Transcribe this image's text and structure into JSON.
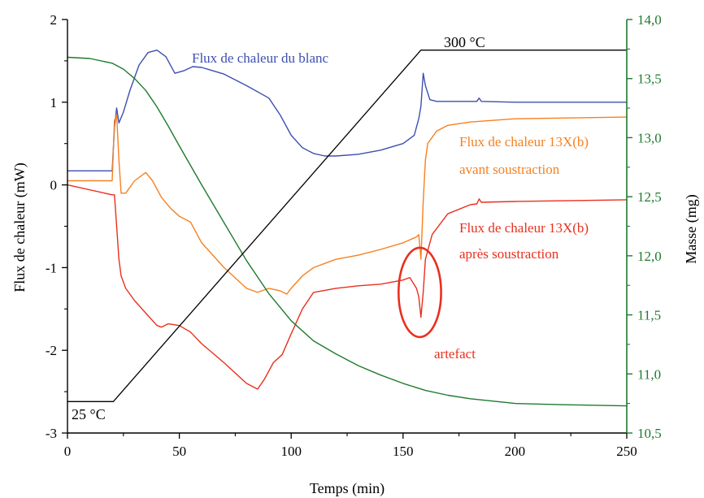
{
  "chart_data": {
    "type": "line",
    "xlabel": "Temps (min)",
    "ylabel": "Flux de chaleur (mW)",
    "y2label": "Masse (mg)",
    "xlim": [
      0,
      250
    ],
    "ylim": [
      -3,
      2
    ],
    "y2lim": [
      10.5,
      14.0
    ],
    "xticks": [
      0,
      50,
      100,
      150,
      200,
      250
    ],
    "yticks": [
      -3,
      -2,
      -1,
      0,
      1,
      2
    ],
    "y2ticks": [
      "10,5",
      "11,0",
      "11,5",
      "12,0",
      "12,5",
      "13,0",
      "13,5",
      "14,0"
    ],
    "y2tick_values": [
      10.5,
      11.0,
      11.5,
      12.0,
      12.5,
      13.0,
      13.5,
      14.0
    ],
    "colors": {
      "blanc": "#3d4fb0",
      "avant": "#f7801e",
      "apres": "#e8301e",
      "masse": "#1f7a2e",
      "temperature": "#000000",
      "right_axis": "#1f7a2e",
      "artefact": "#e8301e"
    },
    "series": [
      {
        "name": "Flux de chaleur du blanc",
        "axis": "left",
        "x": [
          0,
          20,
          21,
          22,
          23,
          25,
          28,
          32,
          36,
          40,
          44,
          48,
          52,
          56,
          60,
          70,
          80,
          90,
          95,
          100,
          105,
          110,
          115,
          120,
          130,
          140,
          150,
          155,
          157,
          158,
          159,
          160,
          162,
          165,
          183,
          184,
          185,
          200,
          250
        ],
        "y": [
          0.17,
          0.17,
          0.7,
          0.93,
          0.75,
          0.88,
          1.15,
          1.45,
          1.6,
          1.63,
          1.55,
          1.35,
          1.38,
          1.43,
          1.42,
          1.34,
          1.2,
          1.05,
          0.85,
          0.6,
          0.45,
          0.38,
          0.35,
          0.35,
          0.37,
          0.42,
          0.5,
          0.6,
          0.8,
          0.95,
          1.35,
          1.2,
          1.03,
          1.01,
          1.01,
          1.05,
          1.01,
          1.0,
          1.0
        ]
      },
      {
        "name": "Flux de chaleur 13X(b) avant soustraction",
        "axis": "left",
        "x": [
          0,
          20,
          21,
          22,
          23,
          24,
          26,
          30,
          35,
          38,
          42,
          46,
          50,
          55,
          60,
          70,
          80,
          85,
          90,
          95,
          98,
          100,
          105,
          110,
          120,
          130,
          140,
          150,
          155,
          156,
          157,
          158,
          159,
          160,
          161,
          165,
          170,
          180,
          200,
          250
        ],
        "y": [
          0.05,
          0.05,
          0.78,
          0.85,
          0.3,
          -0.1,
          -0.1,
          0.05,
          0.15,
          0.05,
          -0.15,
          -0.28,
          -0.38,
          -0.45,
          -0.7,
          -1.0,
          -1.25,
          -1.3,
          -1.25,
          -1.28,
          -1.32,
          -1.25,
          -1.1,
          -1.0,
          -0.9,
          -0.85,
          -0.78,
          -0.7,
          -0.64,
          -0.63,
          -0.6,
          -0.9,
          -0.2,
          0.3,
          0.5,
          0.65,
          0.72,
          0.76,
          0.8,
          0.82
        ]
      },
      {
        "name": "Flux de chaleur 13X(b) après soustraction",
        "axis": "left",
        "x": [
          0,
          20,
          21,
          22,
          23,
          24,
          26,
          30,
          35,
          40,
          42,
          45,
          50,
          55,
          60,
          70,
          80,
          85,
          88,
          92,
          96,
          100,
          105,
          110,
          120,
          130,
          140,
          150,
          153,
          156,
          157,
          158,
          159,
          160,
          163,
          170,
          180,
          183,
          184,
          185,
          200,
          250
        ],
        "y": [
          0.0,
          -0.12,
          -0.12,
          -0.5,
          -0.9,
          -1.1,
          -1.25,
          -1.4,
          -1.55,
          -1.7,
          -1.72,
          -1.68,
          -1.7,
          -1.78,
          -1.92,
          -2.15,
          -2.4,
          -2.47,
          -2.35,
          -2.15,
          -2.05,
          -1.8,
          -1.5,
          -1.3,
          -1.25,
          -1.22,
          -1.2,
          -1.15,
          -1.12,
          -1.25,
          -1.35,
          -1.6,
          -1.3,
          -0.9,
          -0.6,
          -0.35,
          -0.24,
          -0.23,
          -0.17,
          -0.21,
          -0.2,
          -0.18
        ]
      },
      {
        "name": "Masse",
        "axis": "right",
        "x": [
          0,
          10,
          20,
          25,
          30,
          35,
          40,
          45,
          50,
          60,
          70,
          80,
          90,
          100,
          110,
          120,
          130,
          140,
          150,
          160,
          170,
          180,
          190,
          200,
          220,
          250
        ],
        "y": [
          13.68,
          13.67,
          13.63,
          13.58,
          13.5,
          13.4,
          13.26,
          13.1,
          12.93,
          12.6,
          12.28,
          11.96,
          11.68,
          11.45,
          11.28,
          11.17,
          11.07,
          10.99,
          10.92,
          10.86,
          10.82,
          10.79,
          10.77,
          10.75,
          10.74,
          10.73
        ]
      },
      {
        "name": "Température",
        "axis": "left",
        "x": [
          0,
          20.5,
          158,
          250
        ],
        "y": [
          -2.62,
          -2.62,
          1.63,
          1.63
        ]
      }
    ],
    "annotations": {
      "blanc": "Flux de chaleur du blanc",
      "avant_line1": "Flux de chaleur 13X(b)",
      "avant_line2": "avant soustraction",
      "apres_line1": "Flux de chaleur 13X(b)",
      "apres_line2": "après soustraction",
      "artefact": "artefact",
      "temp_high": "300 °C",
      "temp_low": "25 °C"
    },
    "artefact_ellipse": {
      "x": 157.5,
      "y": -1.3,
      "rx": 9.5,
      "ry": 0.54
    },
    "grid": false,
    "legend": "none"
  }
}
